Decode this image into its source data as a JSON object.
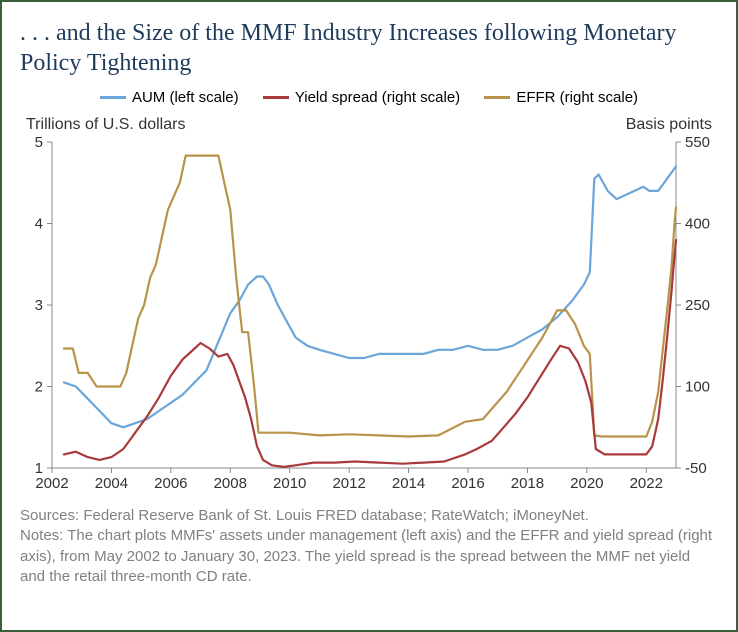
{
  "title": ". . . and the Size of the MMF Industry Increases following Monetary Policy Tightening",
  "legend": [
    {
      "label": "AUM (left scale)",
      "color": "#6aa6d9"
    },
    {
      "label": "Yield spread (right scale)",
      "color": "#a83a3a"
    },
    {
      "label": "EFFR (right scale)",
      "color": "#b8944a"
    }
  ],
  "left_axis_title": "Trillions of U.S. dollars",
  "right_axis_title": "Basis points",
  "sources_text": "Sources: Federal Reserve Bank of St. Louis FRED database; RateWatch; iMoneyNet.\nNotes: The chart plots MMFs' assets under management (left axis) and the EFFR and yield spread (right axis), from May 2002 to January 30, 2023. The yield spread is the spread between the MMF net yield and the retail three-month CD rate.",
  "chart": {
    "type": "line",
    "background_color": "#ffffff",
    "axis_color": "#888888",
    "line_width": 2.2,
    "x": {
      "min": 2002,
      "max": 2023,
      "ticks": [
        2002,
        2004,
        2006,
        2008,
        2010,
        2012,
        2014,
        2016,
        2018,
        2020,
        2022
      ]
    },
    "y_left": {
      "min": 1,
      "max": 5,
      "ticks": [
        1,
        2,
        3,
        4,
        5
      ]
    },
    "y_right": {
      "min": -50,
      "max": 550,
      "ticks": [
        -50,
        100,
        250,
        400,
        550
      ]
    },
    "series": [
      {
        "id": "aum",
        "axis": "left",
        "color": "#6aa6d9",
        "points": [
          [
            2002.4,
            2.05
          ],
          [
            2002.8,
            2.0
          ],
          [
            2003.2,
            1.85
          ],
          [
            2003.6,
            1.7
          ],
          [
            2004.0,
            1.55
          ],
          [
            2004.4,
            1.5
          ],
          [
            2004.8,
            1.55
          ],
          [
            2005.2,
            1.6
          ],
          [
            2005.6,
            1.7
          ],
          [
            2006.0,
            1.8
          ],
          [
            2006.4,
            1.9
          ],
          [
            2006.8,
            2.05
          ],
          [
            2007.2,
            2.2
          ],
          [
            2007.6,
            2.55
          ],
          [
            2008.0,
            2.9
          ],
          [
            2008.3,
            3.05
          ],
          [
            2008.6,
            3.25
          ],
          [
            2008.9,
            3.35
          ],
          [
            2009.1,
            3.35
          ],
          [
            2009.3,
            3.25
          ],
          [
            2009.6,
            3.0
          ],
          [
            2009.9,
            2.8
          ],
          [
            2010.2,
            2.6
          ],
          [
            2010.6,
            2.5
          ],
          [
            2011.0,
            2.45
          ],
          [
            2011.5,
            2.4
          ],
          [
            2012.0,
            2.35
          ],
          [
            2012.5,
            2.35
          ],
          [
            2013.0,
            2.4
          ],
          [
            2013.5,
            2.4
          ],
          [
            2014.0,
            2.4
          ],
          [
            2014.5,
            2.4
          ],
          [
            2015.0,
            2.45
          ],
          [
            2015.5,
            2.45
          ],
          [
            2016.0,
            2.5
          ],
          [
            2016.5,
            2.45
          ],
          [
            2017.0,
            2.45
          ],
          [
            2017.5,
            2.5
          ],
          [
            2018.0,
            2.6
          ],
          [
            2018.5,
            2.7
          ],
          [
            2019.0,
            2.85
          ],
          [
            2019.5,
            3.05
          ],
          [
            2019.9,
            3.25
          ],
          [
            2020.1,
            3.4
          ],
          [
            2020.25,
            4.55
          ],
          [
            2020.4,
            4.6
          ],
          [
            2020.7,
            4.4
          ],
          [
            2021.0,
            4.3
          ],
          [
            2021.3,
            4.35
          ],
          [
            2021.6,
            4.4
          ],
          [
            2021.9,
            4.45
          ],
          [
            2022.1,
            4.4
          ],
          [
            2022.4,
            4.4
          ],
          [
            2022.7,
            4.55
          ],
          [
            2022.9,
            4.65
          ],
          [
            2023.0,
            4.7
          ]
        ]
      },
      {
        "id": "effr",
        "axis": "right",
        "color": "#b8944a",
        "points": [
          [
            2002.4,
            170
          ],
          [
            2002.7,
            170
          ],
          [
            2002.9,
            125
          ],
          [
            2003.2,
            125
          ],
          [
            2003.5,
            100
          ],
          [
            2004.0,
            100
          ],
          [
            2004.3,
            100
          ],
          [
            2004.5,
            125
          ],
          [
            2004.7,
            175
          ],
          [
            2004.9,
            225
          ],
          [
            2005.1,
            250
          ],
          [
            2005.3,
            300
          ],
          [
            2005.5,
            325
          ],
          [
            2005.7,
            375
          ],
          [
            2005.9,
            425
          ],
          [
            2006.1,
            450
          ],
          [
            2006.3,
            475
          ],
          [
            2006.5,
            525
          ],
          [
            2006.8,
            525
          ],
          [
            2007.2,
            525
          ],
          [
            2007.6,
            525
          ],
          [
            2007.8,
            475
          ],
          [
            2008.0,
            425
          ],
          [
            2008.2,
            300
          ],
          [
            2008.4,
            200
          ],
          [
            2008.6,
            200
          ],
          [
            2008.8,
            100
          ],
          [
            2008.95,
            15
          ],
          [
            2009.2,
            15
          ],
          [
            2010.0,
            15
          ],
          [
            2011.0,
            10
          ],
          [
            2012.0,
            12
          ],
          [
            2013.0,
            10
          ],
          [
            2014.0,
            8
          ],
          [
            2015.0,
            10
          ],
          [
            2015.9,
            35
          ],
          [
            2016.5,
            40
          ],
          [
            2016.9,
            65
          ],
          [
            2017.3,
            90
          ],
          [
            2017.6,
            115
          ],
          [
            2017.9,
            140
          ],
          [
            2018.2,
            165
          ],
          [
            2018.5,
            190
          ],
          [
            2018.8,
            220
          ],
          [
            2019.0,
            240
          ],
          [
            2019.3,
            240
          ],
          [
            2019.6,
            215
          ],
          [
            2019.9,
            175
          ],
          [
            2020.1,
            160
          ],
          [
            2020.25,
            10
          ],
          [
            2020.5,
            8
          ],
          [
            2021.0,
            8
          ],
          [
            2021.5,
            8
          ],
          [
            2022.0,
            8
          ],
          [
            2022.2,
            35
          ],
          [
            2022.4,
            90
          ],
          [
            2022.55,
            165
          ],
          [
            2022.7,
            240
          ],
          [
            2022.85,
            320
          ],
          [
            2022.95,
            400
          ],
          [
            2023.0,
            430
          ]
        ]
      },
      {
        "id": "yield_spread",
        "axis": "right",
        "color": "#a83a3a",
        "points": [
          [
            2002.4,
            -25
          ],
          [
            2002.8,
            -20
          ],
          [
            2003.2,
            -30
          ],
          [
            2003.6,
            -35
          ],
          [
            2004.0,
            -30
          ],
          [
            2004.4,
            -15
          ],
          [
            2004.8,
            15
          ],
          [
            2005.2,
            45
          ],
          [
            2005.6,
            80
          ],
          [
            2006.0,
            120
          ],
          [
            2006.4,
            150
          ],
          [
            2006.8,
            170
          ],
          [
            2007.0,
            180
          ],
          [
            2007.3,
            170
          ],
          [
            2007.6,
            155
          ],
          [
            2007.9,
            160
          ],
          [
            2008.1,
            140
          ],
          [
            2008.3,
            110
          ],
          [
            2008.5,
            80
          ],
          [
            2008.7,
            40
          ],
          [
            2008.9,
            -10
          ],
          [
            2009.1,
            -35
          ],
          [
            2009.4,
            -45
          ],
          [
            2009.8,
            -48
          ],
          [
            2010.2,
            -45
          ],
          [
            2010.8,
            -40
          ],
          [
            2011.5,
            -40
          ],
          [
            2012.2,
            -38
          ],
          [
            2013.0,
            -40
          ],
          [
            2013.8,
            -42
          ],
          [
            2014.5,
            -40
          ],
          [
            2015.2,
            -38
          ],
          [
            2015.9,
            -25
          ],
          [
            2016.3,
            -15
          ],
          [
            2016.8,
            0
          ],
          [
            2017.2,
            25
          ],
          [
            2017.6,
            50
          ],
          [
            2018.0,
            80
          ],
          [
            2018.4,
            115
          ],
          [
            2018.8,
            150
          ],
          [
            2019.1,
            175
          ],
          [
            2019.4,
            170
          ],
          [
            2019.7,
            145
          ],
          [
            2019.95,
            110
          ],
          [
            2020.15,
            70
          ],
          [
            2020.3,
            -15
          ],
          [
            2020.6,
            -25
          ],
          [
            2021.0,
            -25
          ],
          [
            2021.5,
            -25
          ],
          [
            2022.0,
            -25
          ],
          [
            2022.2,
            -10
          ],
          [
            2022.4,
            40
          ],
          [
            2022.55,
            110
          ],
          [
            2022.7,
            190
          ],
          [
            2022.85,
            275
          ],
          [
            2022.95,
            340
          ],
          [
            2023.0,
            370
          ]
        ]
      }
    ]
  }
}
